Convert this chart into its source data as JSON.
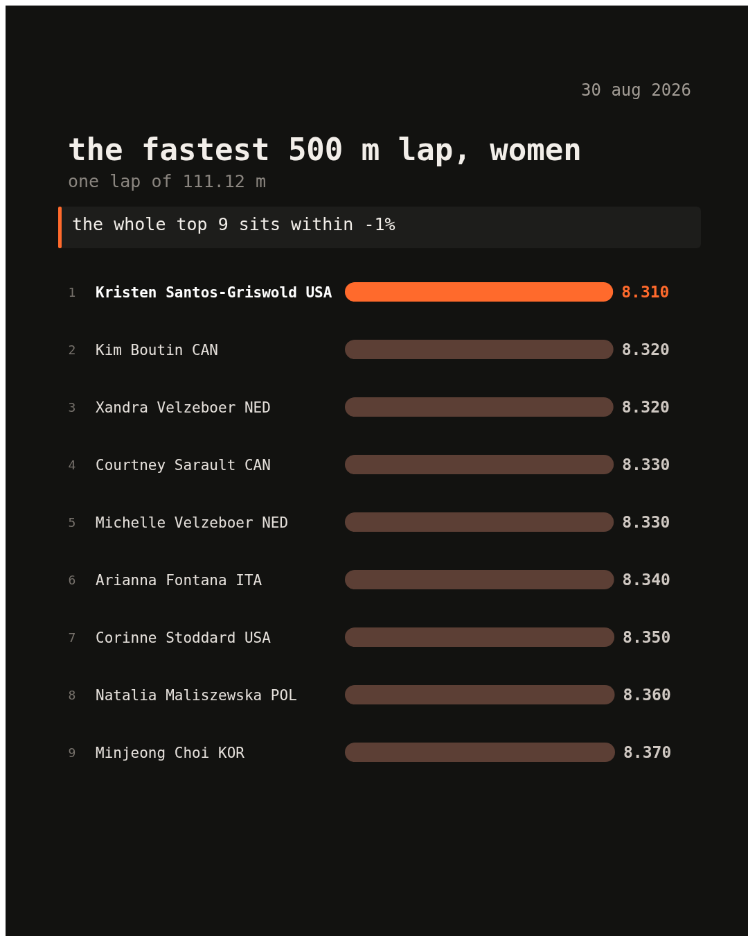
{
  "chart_data": {
    "type": "bar",
    "orientation": "horizontal",
    "title": "the fastest 500 m lap, women",
    "subtitle": "one lap of 111.12 m",
    "categories": [
      "Kristen Santos-Griswold USA",
      "Kim Boutin CAN",
      "Xandra Velzeboer NED",
      "Courtney Sarault CAN",
      "Michelle Velzeboer NED",
      "Arianna Fontana ITA",
      "Corinne Stoddard USA",
      "Natalia Maliszewska POL",
      "Minjeong Choi KOR"
    ],
    "values": [
      8.31,
      8.32,
      8.32,
      8.33,
      8.33,
      8.34,
      8.35,
      8.36,
      8.37
    ],
    "value_labels": [
      "8.310",
      "8.320",
      "8.320",
      "8.330",
      "8.330",
      "8.340",
      "8.350",
      "8.360",
      "8.370"
    ],
    "colors": [
      "#ff6a2c",
      "#5c3f35",
      "#5c3f35",
      "#5c3f35",
      "#5c3f35",
      "#5c3f35",
      "#5c3f35",
      "#5c3f35",
      "#5c3f35"
    ],
    "annotations": [
      "30 aug 2026",
      "the whole top 9 sits within -1%",
      "1",
      "2",
      "3",
      "4",
      "5",
      "6",
      "7",
      "8",
      "9"
    ]
  }
}
